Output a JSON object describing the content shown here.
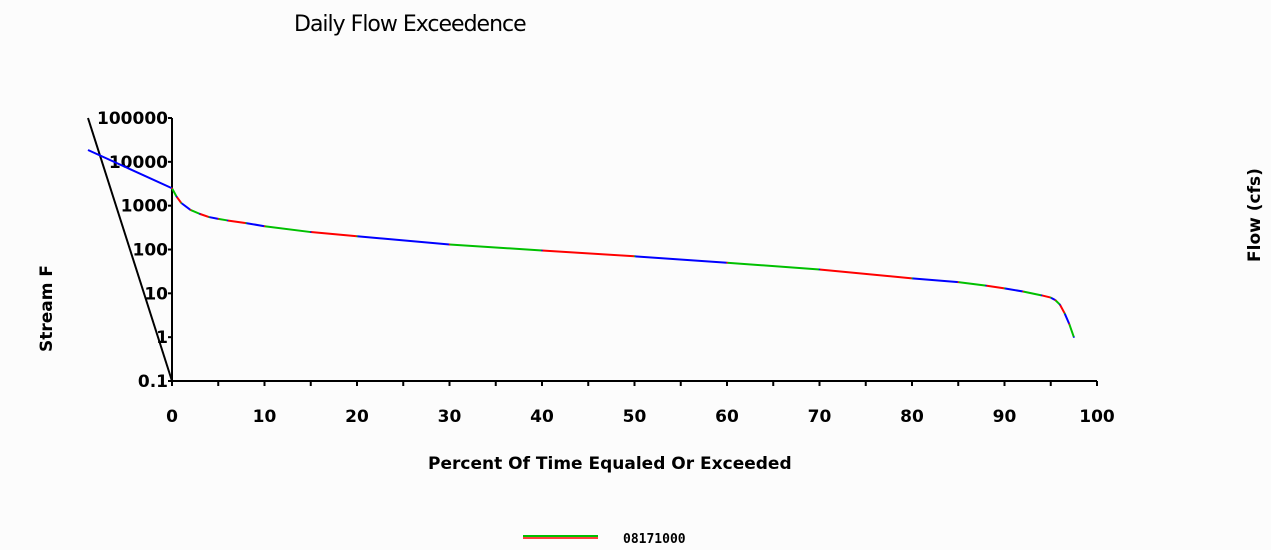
{
  "chart_data": {
    "type": "line",
    "title": "Daily Flow Exceedence",
    "xlabel": "Percent Of Time Equaled Or Exceeded",
    "ylabel_left": "Stream F",
    "ylabel_right": "Flow (cfs)",
    "y_scale": "log",
    "ylim": [
      0.1,
      100000
    ],
    "xlim": [
      0,
      100
    ],
    "x_ticks": [
      "0",
      "10",
      "20",
      "30",
      "40",
      "50",
      "60",
      "70",
      "80",
      "90",
      "100"
    ],
    "y_ticks": [
      "0.1",
      "1",
      "10",
      "100",
      "1000",
      "10000",
      "100000"
    ],
    "y_tick_values": [
      0.1,
      1,
      10,
      100,
      1000,
      10000,
      100000
    ],
    "legend_position": "bottom-center",
    "series": [
      {
        "name": "08171000",
        "colors": [
          "#00c000",
          "#ff0000",
          "#0000ff"
        ],
        "x": [
          0,
          0.5,
          1,
          2,
          3,
          4,
          5,
          6,
          8,
          10,
          15,
          20,
          30,
          40,
          50,
          60,
          70,
          80,
          85,
          88,
          90,
          92,
          94,
          95,
          95.5,
          96,
          96.5,
          97,
          97.5
        ],
        "y": [
          2500,
          1600,
          1150,
          800,
          650,
          550,
          500,
          460,
          400,
          340,
          250,
          200,
          130,
          95,
          70,
          50,
          35,
          22,
          18,
          15,
          13,
          11,
          9,
          8,
          7,
          5.5,
          3.5,
          2,
          1
        ]
      }
    ]
  }
}
